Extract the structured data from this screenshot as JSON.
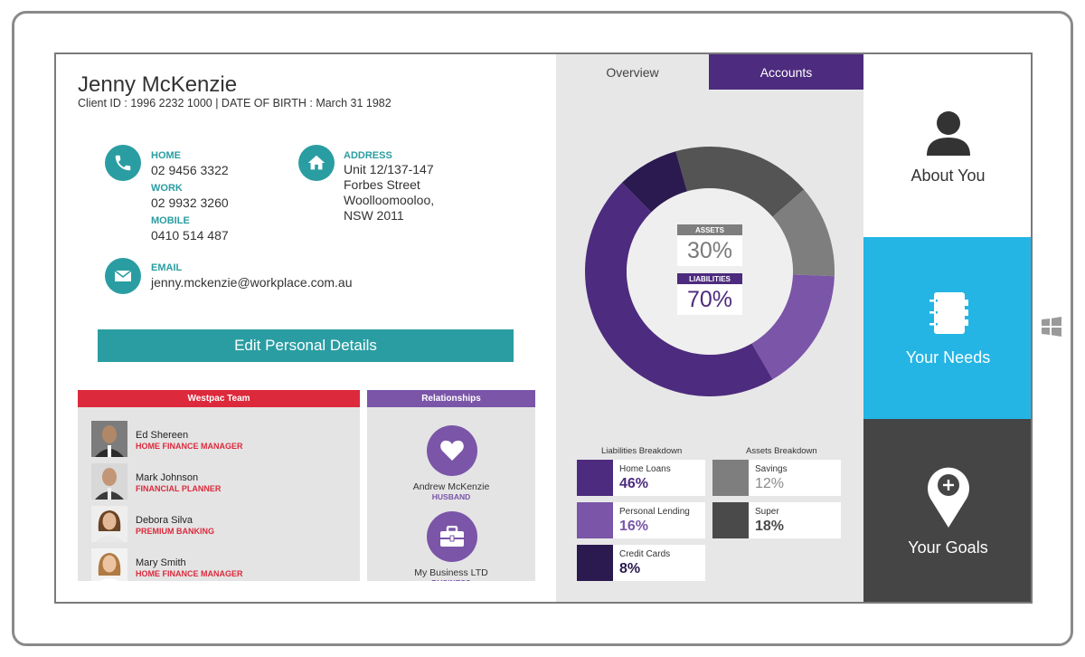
{
  "client": {
    "name": "Jenny McKenzie",
    "meta": "Client ID : 1996 2232 1000  |  DATE OF BIRTH : March 31 1982"
  },
  "contact": {
    "home_label": "HOME",
    "home_value": "02 9456 3322",
    "work_label": "WORK",
    "work_value": "02 9932 3260",
    "mobile_label": "MOBILE",
    "mobile_value": "0410 514 487",
    "address_label": "ADDRESS",
    "address_lines": [
      "Unit 12/137-147",
      "Forbes Street",
      "Woolloomooloo,",
      "NSW 2011"
    ],
    "email_label": "EMAIL",
    "email_value": "jenny.mckenzie@workplace.com.au"
  },
  "edit_button": "Edit Personal Details",
  "team": {
    "title": "Westpac Team",
    "members": [
      {
        "name": "Ed Shereen",
        "role": "HOME FINANCE MANAGER"
      },
      {
        "name": "Mark Johnson",
        "role": "FINANCIAL PLANNER"
      },
      {
        "name": "Debora Silva",
        "role": "PREMIUM BANKING"
      },
      {
        "name": "Mary Smith",
        "role": "HOME FINANCE MANAGER"
      }
    ]
  },
  "relationships": {
    "title": "Relationships",
    "items": [
      {
        "name": "Andrew McKenzie",
        "role": "HUSBAND",
        "icon": "heart-icon"
      },
      {
        "name": "My Business LTD",
        "role": "BUSINESS",
        "icon": "briefcase-icon"
      }
    ]
  },
  "tabs": {
    "overview": "Overview",
    "accounts": "Accounts"
  },
  "donut": {
    "assets_label": "ASSETS",
    "assets_value": "30%",
    "liabilities_label": "LIABILITIES",
    "liabilities_value": "70%"
  },
  "liabilities": {
    "title": "Liabilities Breakdown",
    "items": [
      {
        "name": "Home Loans",
        "pct": "46%"
      },
      {
        "name": "Personal Lending",
        "pct": "16%"
      },
      {
        "name": "Credit Cards",
        "pct": "8%"
      }
    ]
  },
  "assets": {
    "title": "Assets Breakdown",
    "items": [
      {
        "name": "Savings",
        "pct": "12%"
      },
      {
        "name": "Super",
        "pct": "18%"
      }
    ]
  },
  "tiles": {
    "about": "About You",
    "needs": "Your Needs",
    "goals": "Your Goals"
  },
  "colors": {
    "teal": "#2a9da2",
    "red": "#dc2a3c",
    "purple": "#7a55a8",
    "dark_purple": "#4d2b7e",
    "darkest_purple": "#2b1a50",
    "blue_tile": "#24b5e5",
    "dark_tile": "#454545"
  }
}
